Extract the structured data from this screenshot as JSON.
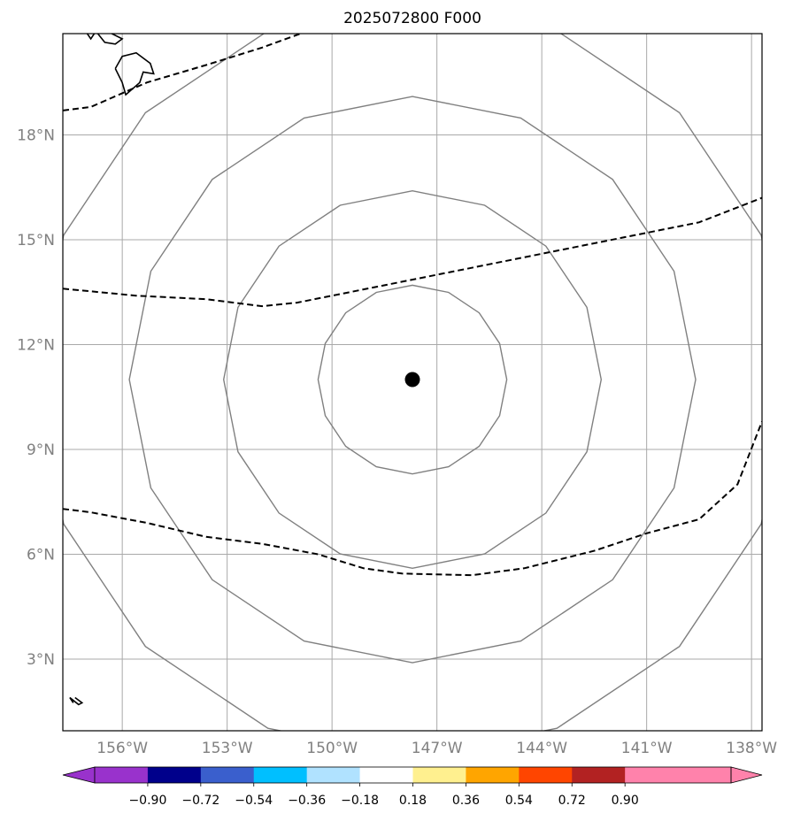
{
  "title": "2025072800 F000",
  "map": {
    "lon_range": [
      -157.7,
      -137.7
    ],
    "lat_range": [
      0.95,
      20.9
    ],
    "lon_ticks": [
      {
        "value": -156,
        "label": "156°W"
      },
      {
        "value": -153,
        "label": "153°W"
      },
      {
        "value": -150,
        "label": "150°W"
      },
      {
        "value": -147,
        "label": "147°W"
      },
      {
        "value": -144,
        "label": "144°W"
      },
      {
        "value": -141,
        "label": "141°W"
      },
      {
        "value": -138,
        "label": "138°W"
      }
    ],
    "lat_ticks": [
      {
        "value": 3,
        "label": "3°N"
      },
      {
        "value": 6,
        "label": "6°N"
      },
      {
        "value": 9,
        "label": "9°N"
      },
      {
        "value": 12,
        "label": "12°N"
      },
      {
        "value": 15,
        "label": "15°N"
      },
      {
        "value": 18,
        "label": "18°N"
      }
    ],
    "grid": true,
    "grid_color": "#a9a9a9",
    "center_marker": {
      "lon": -147.7,
      "lat": 11.0,
      "color": "#000000"
    },
    "range_rings_deg": [
      2.7,
      5.4,
      8.1,
      10.8
    ],
    "ring_color": "#808080",
    "dashed_line_color": "#000000",
    "dashed_lines": [
      [
        [
          -157.7,
          18.7
        ],
        [
          -156.9,
          18.8
        ],
        [
          -155.3,
          19.5
        ],
        [
          -153.6,
          20.0
        ],
        [
          -152.0,
          20.5
        ],
        [
          -150.9,
          20.9
        ]
      ],
      [
        [
          -157.7,
          13.6
        ],
        [
          -155.6,
          13.4
        ],
        [
          -153.6,
          13.3
        ],
        [
          -152.0,
          13.1
        ],
        [
          -151.0,
          13.2
        ],
        [
          -149.5,
          13.5
        ],
        [
          -147.5,
          13.9
        ],
        [
          -145.5,
          14.3
        ],
        [
          -143.5,
          14.7
        ],
        [
          -141.5,
          15.1
        ],
        [
          -139.5,
          15.5
        ],
        [
          -137.7,
          16.2
        ]
      ],
      [
        [
          -157.7,
          7.3
        ],
        [
          -156.9,
          7.2
        ],
        [
          -155.3,
          6.9
        ],
        [
          -153.6,
          6.5
        ],
        [
          -152.0,
          6.3
        ],
        [
          -150.4,
          6.0
        ],
        [
          -149.1,
          5.6
        ],
        [
          -148.0,
          5.45
        ],
        [
          -146.0,
          5.4
        ],
        [
          -144.5,
          5.6
        ],
        [
          -142.5,
          6.1
        ],
        [
          -141.0,
          6.6
        ],
        [
          -139.5,
          7.0
        ],
        [
          -138.4,
          8.0
        ],
        [
          -137.7,
          9.8
        ]
      ]
    ],
    "coastlines": [
      [
        [
          -156.2,
          19.9
        ],
        [
          -156.0,
          20.25
        ],
        [
          -155.6,
          20.35
        ],
        [
          -155.2,
          20.05
        ],
        [
          -155.1,
          19.75
        ],
        [
          -155.4,
          19.8
        ],
        [
          -155.5,
          19.5
        ],
        [
          -155.9,
          19.15
        ],
        [
          -156.0,
          19.5
        ],
        [
          -156.2,
          19.9
        ]
      ],
      [
        [
          -156.7,
          20.9
        ],
        [
          -156.5,
          20.65
        ],
        [
          -156.2,
          20.6
        ],
        [
          -156.0,
          20.75
        ],
        [
          -156.3,
          20.9
        ]
      ],
      [
        [
          -157.0,
          20.9
        ],
        [
          -156.9,
          20.75
        ],
        [
          -156.8,
          20.9
        ]
      ],
      [
        [
          -157.4,
          1.75
        ],
        [
          -157.5,
          1.9
        ],
        [
          -157.25,
          1.7
        ],
        [
          -157.15,
          1.75
        ],
        [
          -157.35,
          1.9
        ]
      ]
    ]
  },
  "colorbar": {
    "colors": [
      "#9932cc",
      "#00008b",
      "#3a5fcd",
      "#00bfff",
      "#b0e2ff",
      "#ffffff",
      "#fff08f",
      "#ffa500",
      "#ff4500",
      "#b22222",
      "#ff82ab",
      "#ff82ab"
    ],
    "under_color": "#9932cc",
    "over_color": "#ff82ab",
    "tick_labels": [
      "−0.90",
      "−0.72",
      "−0.54",
      "−0.36",
      "−0.18",
      "0.18",
      "0.36",
      "0.54",
      "0.72",
      "0.90"
    ]
  }
}
